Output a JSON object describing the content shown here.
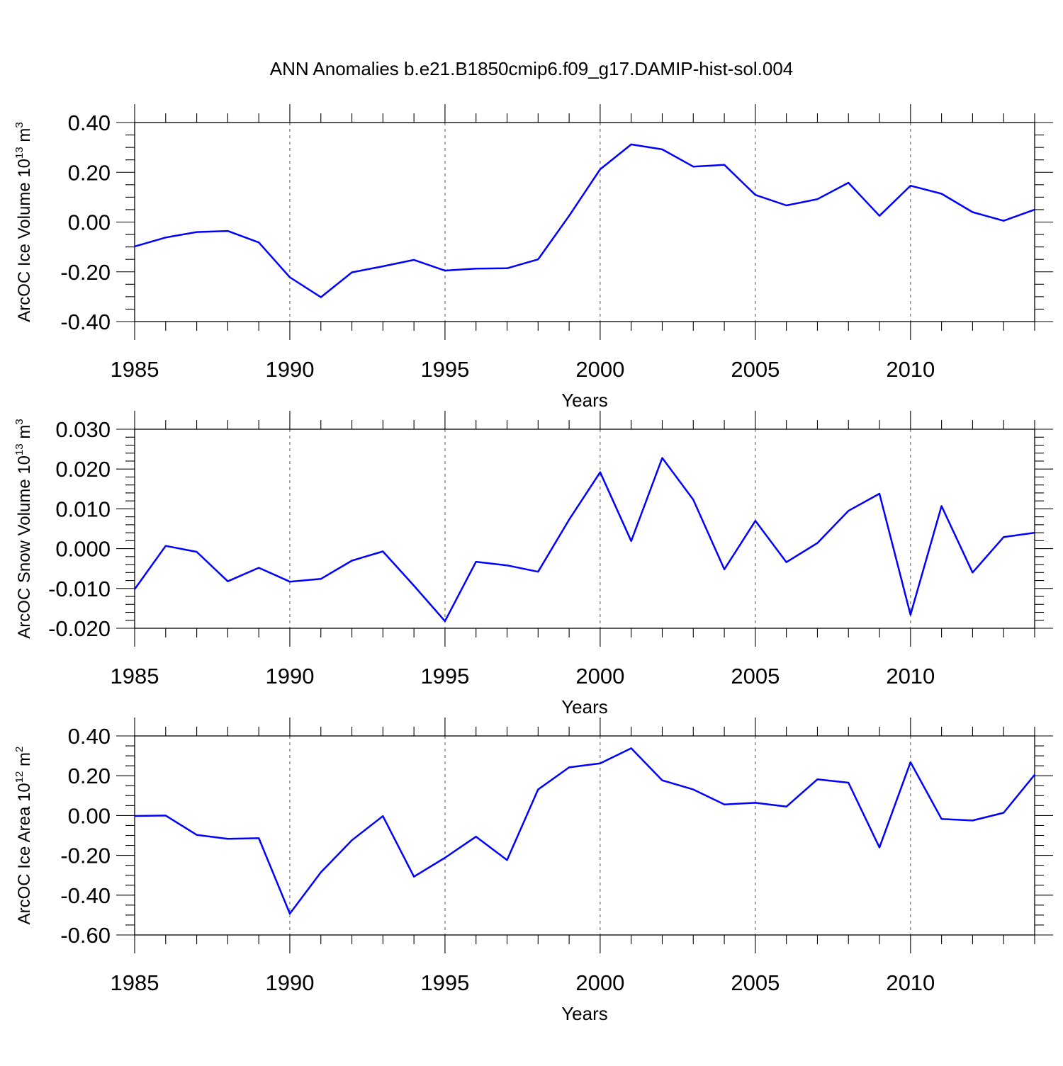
{
  "title": "ANN Anomalies b.e21.B1850cmip6.f09_g17.DAMIP-hist-sol.004",
  "line_color": "#0000ff",
  "chart_data": [
    {
      "type": "line",
      "xlabel": "Years",
      "ylabel": "ArcOC Ice Volume 10",
      "ylabel_exp": "13",
      "ylabel_unit": " m",
      "ylabel_unit_exp": "3",
      "xlim": [
        1985,
        2014
      ],
      "ylim": [
        -0.4,
        0.4
      ],
      "xticks": [
        1985,
        1990,
        1995,
        2000,
        2005,
        2010
      ],
      "xtick_labels": [
        "1985",
        "1990",
        "1995",
        "2000",
        "2005",
        "2010"
      ],
      "yticks": [
        -0.4,
        -0.2,
        0.0,
        0.2,
        0.4
      ],
      "ytick_labels": [
        "-0.40",
        "-0.20",
        "0.00",
        "0.20",
        "0.40"
      ],
      "yminor": 0.05,
      "x": [
        1985,
        1986,
        1987,
        1988,
        1989,
        1990,
        1991,
        1992,
        1993,
        1994,
        1995,
        1996,
        1997,
        1998,
        1999,
        2000,
        2001,
        2002,
        2003,
        2004,
        2005,
        2006,
        2007,
        2008,
        2009,
        2010,
        2011,
        2012,
        2013,
        2014
      ],
      "values": [
        -0.098,
        -0.062,
        -0.04,
        -0.036,
        -0.082,
        -0.222,
        -0.302,
        -0.202,
        -0.178,
        -0.152,
        -0.195,
        -0.187,
        -0.186,
        -0.15,
        0.025,
        0.212,
        0.312,
        0.292,
        0.223,
        0.23,
        0.109,
        0.067,
        0.092,
        0.158,
        0.025,
        0.146,
        0.114,
        0.04,
        0.005,
        0.05
      ]
    },
    {
      "type": "line",
      "xlabel": "Years",
      "ylabel": "ArcOC Snow Volume 10",
      "ylabel_exp": "13",
      "ylabel_unit": " m",
      "ylabel_unit_exp": "3",
      "xlim": [
        1985,
        2014
      ],
      "ylim": [
        -0.02,
        0.03
      ],
      "xticks": [
        1985,
        1990,
        1995,
        2000,
        2005,
        2010
      ],
      "xtick_labels": [
        "1985",
        "1990",
        "1995",
        "2000",
        "2005",
        "2010"
      ],
      "yticks": [
        -0.02,
        -0.01,
        0.0,
        0.01,
        0.02,
        0.03
      ],
      "ytick_labels": [
        "-0.020",
        "-0.010",
        "0.000",
        "0.010",
        "0.020",
        "0.030"
      ],
      "yminor": 0.002,
      "x": [
        1985,
        1986,
        1987,
        1988,
        1989,
        1990,
        1991,
        1992,
        1993,
        1994,
        1995,
        1996,
        1997,
        1998,
        1999,
        2000,
        2001,
        2002,
        2003,
        2004,
        2005,
        2006,
        2007,
        2008,
        2009,
        2010,
        2011,
        2012,
        2013,
        2014
      ],
      "values": [
        -0.0102,
        0.0007,
        -0.0008,
        -0.0082,
        -0.0048,
        -0.0083,
        -0.0076,
        -0.003,
        -0.0007,
        -0.0093,
        -0.0182,
        -0.0033,
        -0.0042,
        -0.0058,
        0.0073,
        0.0192,
        0.0019,
        0.0228,
        0.0123,
        -0.0052,
        0.007,
        -0.0034,
        0.0014,
        0.0095,
        0.0138,
        -0.0166,
        0.0107,
        -0.006,
        0.0029,
        0.004
      ]
    },
    {
      "type": "line",
      "xlabel": "Years",
      "ylabel": "ArcOC Ice Area 10",
      "ylabel_exp": "12",
      "ylabel_unit": " m",
      "ylabel_unit_exp": "2",
      "xlim": [
        1985,
        2014
      ],
      "ylim": [
        -0.6,
        0.4
      ],
      "xticks": [
        1985,
        1990,
        1995,
        2000,
        2005,
        2010
      ],
      "xtick_labels": [
        "1985",
        "1990",
        "1995",
        "2000",
        "2005",
        "2010"
      ],
      "yticks": [
        -0.6,
        -0.4,
        -0.2,
        0.0,
        0.2,
        0.4
      ],
      "ytick_labels": [
        "-0.60",
        "-0.40",
        "-0.20",
        "0.00",
        "0.20",
        "0.40"
      ],
      "yminor": 0.05,
      "x": [
        1985,
        1986,
        1987,
        1988,
        1989,
        1990,
        1991,
        1992,
        1993,
        1994,
        1995,
        1996,
        1997,
        1998,
        1999,
        2000,
        2001,
        2002,
        2003,
        2004,
        2005,
        2006,
        2007,
        2008,
        2009,
        2010,
        2011,
        2012,
        2013,
        2014
      ],
      "values": [
        -0.002,
        0.0,
        -0.097,
        -0.117,
        -0.114,
        -0.493,
        -0.285,
        -0.124,
        -0.003,
        -0.307,
        -0.212,
        -0.106,
        -0.224,
        0.131,
        0.242,
        0.262,
        0.338,
        0.177,
        0.131,
        0.056,
        0.064,
        0.045,
        0.182,
        0.165,
        -0.16,
        0.268,
        -0.017,
        -0.025,
        0.014,
        0.205
      ]
    }
  ]
}
